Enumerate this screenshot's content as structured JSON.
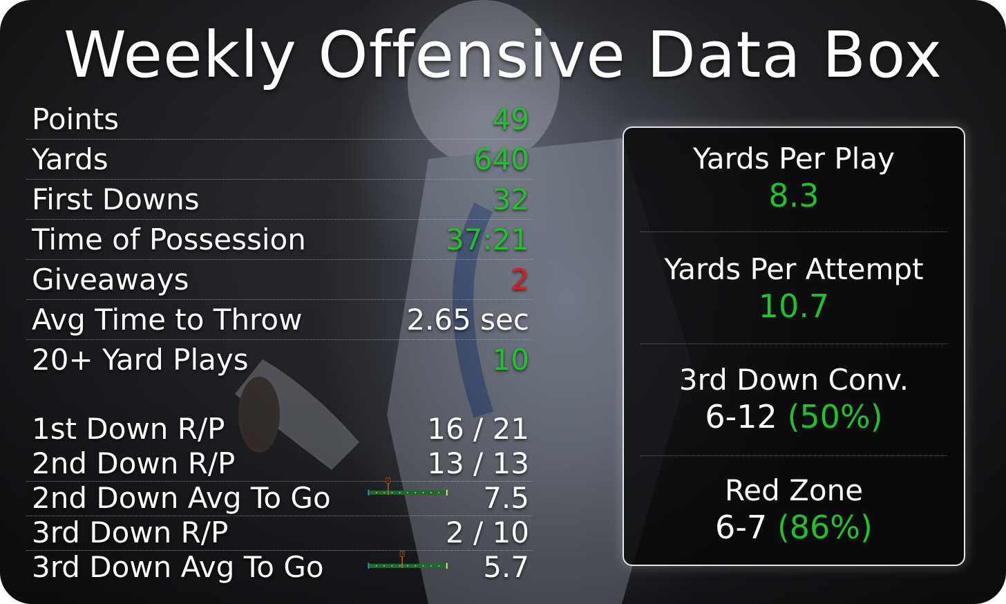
{
  "title": "Weekly Offensive Data Box",
  "stats": [
    {
      "label": "Points",
      "value": "49",
      "color": "#22c02a"
    },
    {
      "label": "Yards",
      "value": "640",
      "color": "#22c02a"
    },
    {
      "label": "First Downs",
      "value": "32",
      "color": "#22c02a"
    },
    {
      "label": "Time of Possession",
      "value": "37:21",
      "color": "#22c02a"
    },
    {
      "label": "Giveaways",
      "value": "2",
      "color": "#e01b1b"
    },
    {
      "label": "Avg Time to Throw",
      "value": "2.65 sec",
      "color": "#ffffff"
    },
    {
      "label": "20+ Yard Plays",
      "value": "10",
      "color": "#22c02a"
    }
  ],
  "downs": [
    {
      "label": "1st Down R/P",
      "value": "16 / 21"
    },
    {
      "label": "2nd Down R/P",
      "value": "13 / 13"
    },
    {
      "label": "2nd Down Avg To Go",
      "value": "7.5",
      "gauge_marker": "2",
      "gauge_fraction": 0.25
    },
    {
      "label": "3rd Down R/P",
      "value": "2 / 10"
    },
    {
      "label": "3rd Down Avg To Go",
      "value": "5.7",
      "gauge_marker": "3",
      "gauge_fraction": 0.43
    }
  ],
  "panel": {
    "items": [
      {
        "label": "Yards Per Play",
        "value": "8.3",
        "extra": ""
      },
      {
        "label": "Yards Per Attempt",
        "value": "10.7",
        "extra": ""
      },
      {
        "label": "3rd Down Conv.",
        "value": "6-12",
        "extra": "(50%)"
      },
      {
        "label": "Red Zone",
        "value": "6-7",
        "extra": "(86%)"
      }
    ]
  },
  "colors": {
    "green": "#22c02a",
    "red": "#e01b1b",
    "white": "#ffffff",
    "marker": "#e0701e"
  }
}
